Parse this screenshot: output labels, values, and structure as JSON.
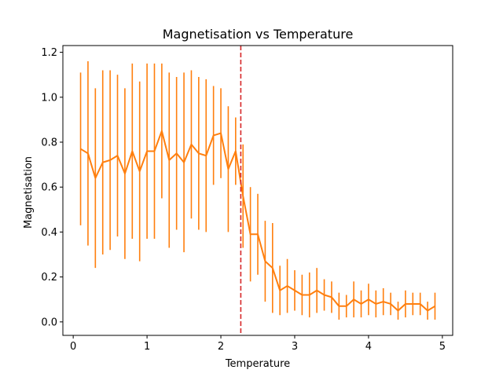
{
  "chart_data": {
    "type": "line",
    "title": "Magnetisation vs Temperature",
    "xlabel": "Temperature",
    "ylabel": "Magnetisation",
    "xlim": [
      -0.14,
      5.14
    ],
    "ylim": [
      -0.06,
      1.23
    ],
    "xticks": [
      0,
      1,
      2,
      3,
      4,
      5
    ],
    "yticks": [
      0.0,
      0.2,
      0.4,
      0.6,
      0.8,
      1.0,
      1.2
    ],
    "xtick_labels": [
      "0",
      "1",
      "2",
      "3",
      "4",
      "5"
    ],
    "ytick_labels": [
      "0.0",
      "0.2",
      "0.4",
      "0.6",
      "0.8",
      "1.0",
      "1.2"
    ],
    "grid": false,
    "legend": "none",
    "critical_line": {
      "x": 2.27,
      "color": "#d62728",
      "style": "dashed"
    },
    "series": [
      {
        "color": "#ff7f0e",
        "x": [
          0.1,
          0.2,
          0.3,
          0.4,
          0.5,
          0.6,
          0.7,
          0.8,
          0.9,
          1.0,
          1.1,
          1.2,
          1.3,
          1.4,
          1.5,
          1.6,
          1.7,
          1.8,
          1.9,
          2.0,
          2.1,
          2.2,
          2.3,
          2.4,
          2.5,
          2.6,
          2.7,
          2.8,
          2.9,
          3.0,
          3.1,
          3.2,
          3.3,
          3.4,
          3.5,
          3.6,
          3.7,
          3.8,
          3.9,
          4.0,
          4.1,
          4.2,
          4.3,
          4.4,
          4.5,
          4.6,
          4.7,
          4.8,
          4.9
        ],
        "y": [
          0.77,
          0.75,
          0.64,
          0.71,
          0.72,
          0.74,
          0.66,
          0.76,
          0.67,
          0.76,
          0.76,
          0.85,
          0.72,
          0.75,
          0.71,
          0.79,
          0.75,
          0.74,
          0.83,
          0.84,
          0.68,
          0.76,
          0.56,
          0.39,
          0.39,
          0.27,
          0.24,
          0.14,
          0.16,
          0.14,
          0.12,
          0.12,
          0.14,
          0.12,
          0.11,
          0.07,
          0.07,
          0.1,
          0.08,
          0.1,
          0.08,
          0.09,
          0.08,
          0.05,
          0.08,
          0.08,
          0.08,
          0.05,
          0.07
        ],
        "err": [
          0.34,
          0.41,
          0.4,
          0.41,
          0.4,
          0.36,
          0.38,
          0.39,
          0.4,
          0.39,
          0.39,
          0.3,
          0.39,
          0.34,
          0.4,
          0.33,
          0.34,
          0.34,
          0.22,
          0.2,
          0.28,
          0.15,
          0.23,
          0.21,
          0.18,
          0.18,
          0.2,
          0.11,
          0.12,
          0.09,
          0.09,
          0.1,
          0.1,
          0.07,
          0.07,
          0.06,
          0.05,
          0.08,
          0.06,
          0.07,
          0.06,
          0.06,
          0.05,
          0.04,
          0.06,
          0.05,
          0.05,
          0.04,
          0.06
        ]
      }
    ]
  }
}
